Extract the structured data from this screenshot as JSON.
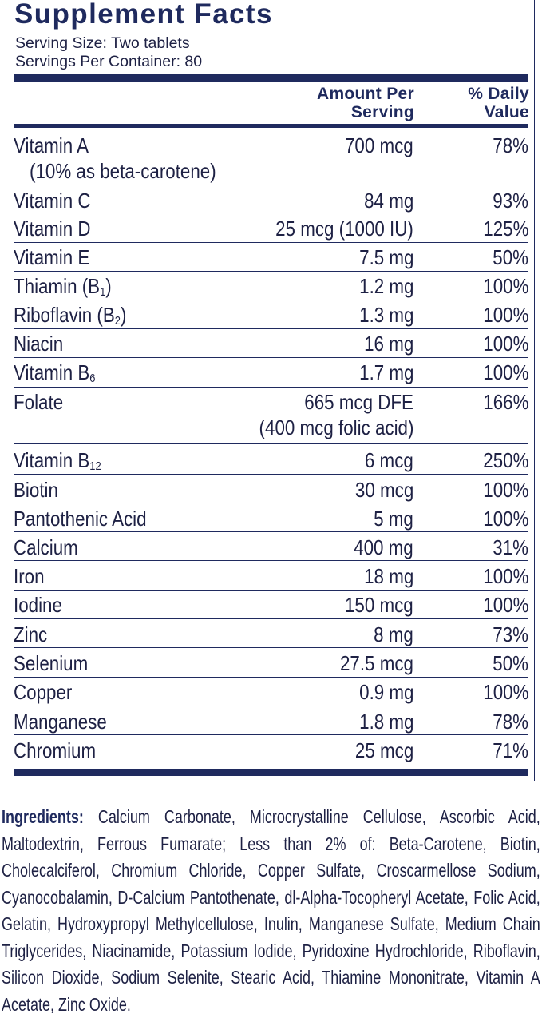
{
  "title": "Supplement Facts",
  "serving_size": "Serving Size: Two tablets",
  "servings_per_container": "Servings Per Container: 80",
  "headers": {
    "amount_line1": "Amount Per",
    "amount_line2": "Serving",
    "dv_line1": "% Daily",
    "dv_line2": "Value"
  },
  "rows": [
    {
      "name": "Vitamin A",
      "name2": "(10% as beta-carotene)",
      "amount": "700 mcg",
      "dv": "78%"
    },
    {
      "name": "Vitamin C",
      "amount": "84 mg",
      "dv": "93%"
    },
    {
      "name": "Vitamin D",
      "amount": "25 mcg (1000 IU)",
      "dv": "125%"
    },
    {
      "name": "Vitamin E",
      "amount": "7.5 mg",
      "dv": "50%"
    },
    {
      "name": "Thiamin (B",
      "sub": "1",
      "suffix": ")",
      "amount": "1.2 mg",
      "dv": "100%"
    },
    {
      "name": "Riboflavin (B",
      "sub": "2",
      "suffix": ")",
      "amount": "1.3 mg",
      "dv": "100%"
    },
    {
      "name": "Niacin",
      "amount": "16 mg",
      "dv": "100%"
    },
    {
      "name": "Vitamin B",
      "sub": "6",
      "amount": "1.7 mg",
      "dv": "100%"
    },
    {
      "name": "Folate",
      "amount": "665 mcg DFE",
      "amount2": "(400 mcg folic acid)",
      "dv": "166%"
    },
    {
      "name": "Vitamin B",
      "sub": "12",
      "amount": "6 mcg",
      "dv": "250%"
    },
    {
      "name": "Biotin",
      "amount": "30 mcg",
      "dv": "100%"
    },
    {
      "name": "Pantothenic Acid",
      "amount": "5 mg",
      "dv": "100%"
    },
    {
      "name": "Calcium",
      "amount": "400 mg",
      "dv": "31%"
    },
    {
      "name": "Iron",
      "amount": "18 mg",
      "dv": "100%"
    },
    {
      "name": "Iodine",
      "amount": "150 mcg",
      "dv": "100%"
    },
    {
      "name": "Zinc",
      "amount": "8 mg",
      "dv": "73%"
    },
    {
      "name": "Selenium",
      "amount": "27.5 mcg",
      "dv": "50%"
    },
    {
      "name": "Copper",
      "amount": "0.9 mg",
      "dv": "100%"
    },
    {
      "name": "Manganese",
      "amount": "1.8 mg",
      "dv": "78%"
    },
    {
      "name": "Chromium",
      "amount": "25 mcg",
      "dv": "71%"
    }
  ],
  "ingredients_label": "Ingredients:",
  "ingredients_text": "Calcium Carbonate, Microcrystalline Cellulose, Ascorbic Acid, Maltodextrin, Ferrous Fumarate; Less than 2% of: Beta-Carotene, Biotin, Cholecalciferol, Chromium Chloride, Copper Sulfate, Croscarmellose Sodium, Cyanocobalamin, D-Calcium Pantothenate, dl-Alpha-Tocopheryl Acetate, Folic Acid, Gelatin, Hydroxypropyl Methylcellulose, Inulin, Manganese Sulfate, Medium Chain Triglycerides, Niacinamide, Potassium Iodide, Pyridoxine Hydrochloride, Riboflavin, Silicon Dioxide, Sodium Selenite, Stearic Acid, Thiamine Mononitrate, Vitamin A Acetate, Zinc Oxide.",
  "colors": {
    "navy": "#1f2a5e",
    "text": "#1e2144",
    "background": "#ffffff"
  }
}
